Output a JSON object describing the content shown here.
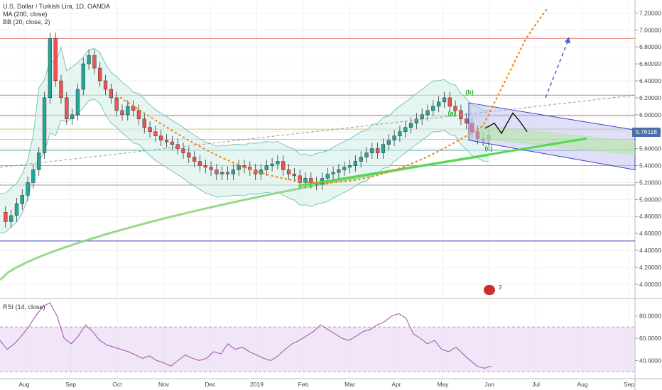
{
  "header": {
    "symbol": "U.S. Dollar / Turkish Lira, 1D, OANDA",
    "ma_label": "MA (200, close)",
    "bb_label": "BB (20, close, 2)"
  },
  "rsi": {
    "label": "RSI (14, close)"
  },
  "last_price": "5.76118",
  "badge_text": "2",
  "colors": {
    "up": "#26a69a",
    "down": "#ef5350",
    "bb": "#7cc4b4",
    "ma200": "#88d278",
    "rsi": "#9c4fa8",
    "channel": "#3f3fc4",
    "trend": "#54d854",
    "fib_dots": "#f08a24",
    "projection": "#4b5fd6"
  },
  "chart_data": {
    "type": "candlestick",
    "price_axis": {
      "ticks": [
        4.0,
        4.2,
        4.4,
        4.6,
        4.8,
        5.0,
        5.2,
        5.4,
        5.6,
        5.8,
        6.0,
        6.2,
        6.4,
        6.6,
        6.8,
        7.0,
        7.2
      ],
      "tick_labels": [
        "4.00000",
        "4.20000",
        "4.40000",
        "4.60000",
        "4.80000",
        "5.00000",
        "5.20000",
        "5.40000",
        "5.60000",
        "5.80000",
        "6.00000",
        "6.20000",
        "6.40000",
        "6.60000",
        "6.80000",
        "7.00000",
        "7.20000"
      ],
      "range": [
        3.84,
        7.32
      ]
    },
    "time_axis": {
      "labels": [
        "Aug",
        "Sep",
        "Oct",
        "Nov",
        "Dec",
        "2019",
        "Feb",
        "Mar",
        "Apr",
        "May",
        "Jun",
        "Jul",
        "Aug",
        "Sep"
      ]
    },
    "rsi_axis": {
      "ticks": [
        40,
        60,
        80
      ],
      "tick_labels": [
        "40.0000",
        "60.0000",
        "80.0000"
      ],
      "range": [
        25,
        95
      ],
      "bands": [
        70,
        30
      ]
    },
    "price_path": [
      4.85,
      4.74,
      4.81,
      4.95,
      5.05,
      5.2,
      5.35,
      5.55,
      6.2,
      6.9,
      6.4,
      6.2,
      5.95,
      6.0,
      6.3,
      6.6,
      6.7,
      6.55,
      6.4,
      6.3,
      6.2,
      6.05,
      6.0,
      6.1,
      6.05,
      5.95,
      5.85,
      5.8,
      5.75,
      5.7,
      5.68,
      5.65,
      5.6,
      5.55,
      5.5,
      5.45,
      5.4,
      5.38,
      5.35,
      5.3,
      5.32,
      5.3,
      5.35,
      5.4,
      5.38,
      5.35,
      5.3,
      5.35,
      5.4,
      5.42,
      5.45,
      5.35,
      5.3,
      5.28,
      5.2,
      5.25,
      5.2,
      5.18,
      5.25,
      5.3,
      5.32,
      5.35,
      5.38,
      5.4,
      5.45,
      5.5,
      5.55,
      5.6,
      5.55,
      5.65,
      5.7,
      5.75,
      5.8,
      5.85,
      5.9,
      5.95,
      6.0,
      6.05,
      6.1,
      6.15,
      6.2,
      6.1,
      6.05,
      5.95,
      5.9,
      5.8,
      5.72,
      5.7,
      5.76
    ],
    "rsi_path": [
      58,
      50,
      55,
      62,
      70,
      80,
      88,
      92,
      80,
      60,
      55,
      62,
      72,
      66,
      58,
      54,
      52,
      50,
      48,
      45,
      42,
      44,
      40,
      38,
      35,
      40,
      45,
      42,
      40,
      42,
      48,
      46,
      55,
      50,
      52,
      48,
      45,
      42,
      40,
      44,
      50,
      55,
      58,
      62,
      66,
      72,
      68,
      64,
      60,
      58,
      62,
      66,
      68,
      72,
      75,
      80,
      82,
      78,
      64,
      60,
      55,
      58,
      50,
      48,
      52,
      46,
      40,
      35,
      33,
      35
    ],
    "levels": [
      {
        "value": 6.9,
        "color": "#e06060"
      },
      {
        "value": 6.23,
        "color": "#9a9a9a"
      },
      {
        "value": 5.99,
        "color": "#e06060"
      },
      {
        "value": 5.83,
        "color": "#c8c87a"
      },
      {
        "value": 5.71,
        "color": "#9fd49f"
      },
      {
        "value": 5.58,
        "color": "#4aa3a3"
      },
      {
        "value": 5.4,
        "color": "#7fb9b9"
      },
      {
        "value": 5.17,
        "color": "#9a9a9a"
      },
      {
        "value": 4.51,
        "color": "#3f3fc4"
      }
    ],
    "annotations": [
      "(a)",
      "(b)",
      "(c)"
    ]
  }
}
